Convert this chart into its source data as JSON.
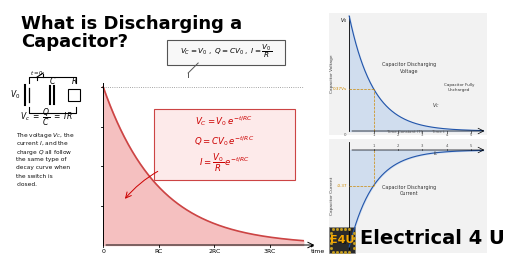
{
  "bg_color": "#ffffff",
  "title_line1": "What is Discharging a",
  "title_line2": "Capacitor?",
  "title_color": "#000000",
  "title_fontsize": 13,
  "main_curve_fill": "#f5c0c0",
  "main_curve_line": "#cc4444",
  "formula_border_color": "#cc4444",
  "top_graph_fill": "#c8d8ee",
  "top_graph_line": "#2255aa",
  "bottom_graph_fill": "#c8d8ee",
  "bottom_graph_line": "#2255aa",
  "annotation_color": "#cc8800",
  "electrical4u_text": "Electrical 4 U",
  "e4u_bg": "#2a2a2a",
  "e4u_text_color": "#f5a800",
  "gray_bg": "#e8e8e8"
}
